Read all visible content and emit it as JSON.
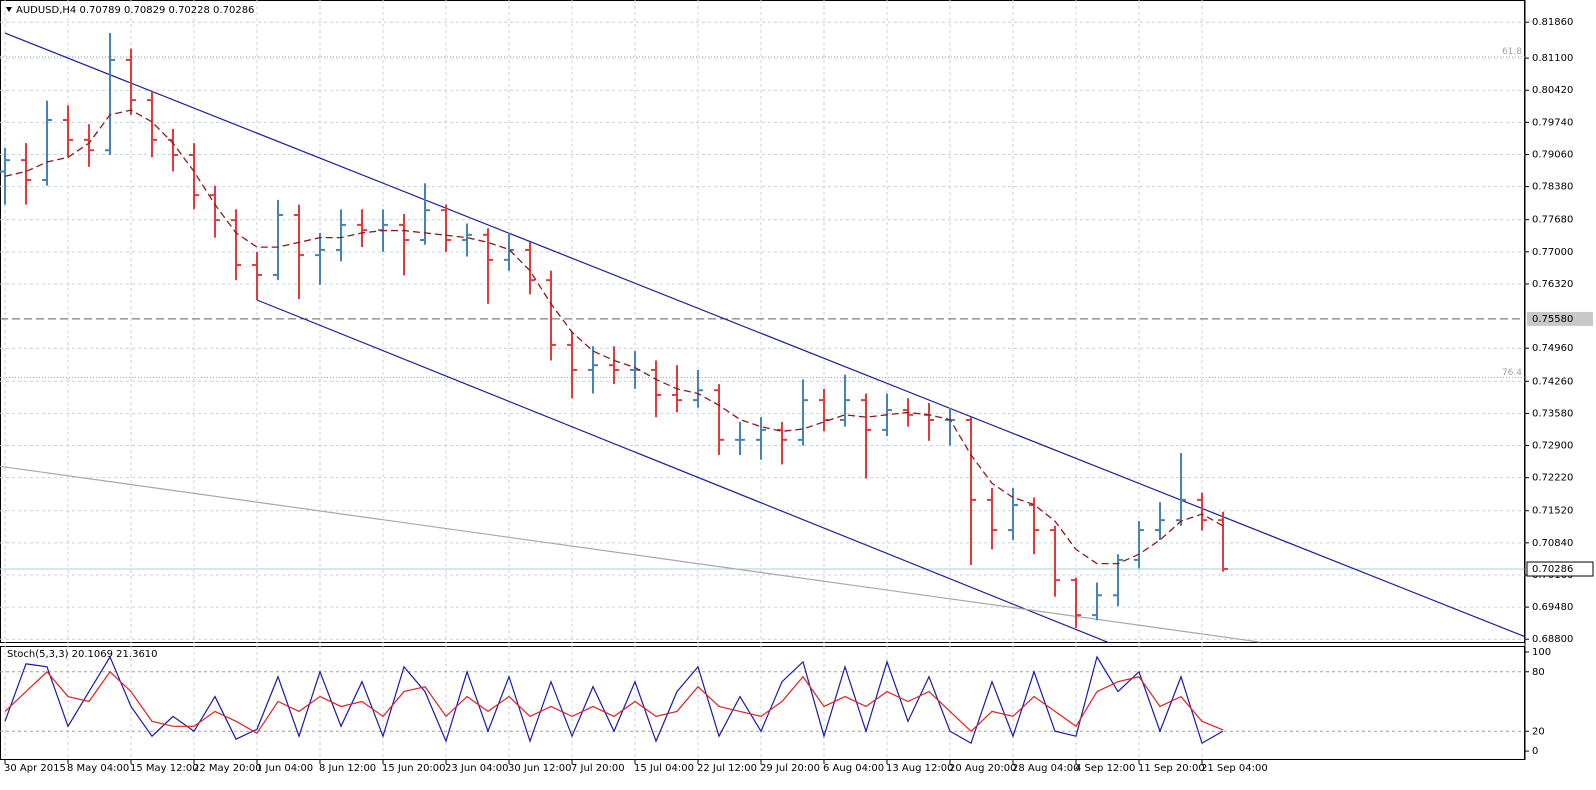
{
  "chart_data": [
    {
      "type": "ohlc",
      "title": "AUDUSD,H4 0.70789 0.70829 0.70228 0.70286",
      "categories": [
        "30 Apr 2015",
        null,
        null,
        "8 May 04:00",
        null,
        null,
        "15 May 12:00",
        null,
        null,
        "22 May 20:00",
        null,
        null,
        "1 Jun 04:00",
        null,
        null,
        "8 Jun 12:00",
        null,
        null,
        "15 Jun 20:00",
        null,
        null,
        "23 Jun 04:00",
        null,
        null,
        "30 Jun 12:00",
        null,
        null,
        "7 Jul 20:00",
        null,
        null,
        "15 Jul 04:00",
        null,
        null,
        "22 Jul 12:00",
        null,
        null,
        "29 Jul 20:00",
        null,
        null,
        "6 Aug 04:00",
        null,
        null,
        "13 Aug 12:00",
        null,
        null,
        "20 Aug 20:00",
        null,
        null,
        "28 Aug 04:00",
        null,
        null,
        "4 Sep 12:00",
        null,
        null,
        "11 Sep 20:00",
        null,
        null,
        "21 Sep 04:00",
        null
      ],
      "ohlc": [
        [
          0.787,
          0.792,
          0.78,
          0.7894
        ],
        [
          0.7894,
          0.793,
          0.78,
          0.7852
        ],
        [
          0.7852,
          0.802,
          0.784,
          0.7979
        ],
        [
          0.7979,
          0.801,
          0.79,
          0.7937
        ],
        [
          0.7937,
          0.797,
          0.788,
          0.7915
        ],
        [
          0.7915,
          0.8163,
          0.7905,
          0.8106
        ],
        [
          0.8106,
          0.813,
          0.799,
          0.8021
        ],
        [
          0.8021,
          0.804,
          0.79,
          0.7937
        ],
        [
          0.7937,
          0.796,
          0.787,
          0.7905
        ],
        [
          0.7905,
          0.793,
          0.779,
          0.782
        ],
        [
          0.782,
          0.784,
          0.773,
          0.7767
        ],
        [
          0.7767,
          0.779,
          0.764,
          0.7672
        ],
        [
          0.7672,
          0.77,
          0.7598,
          0.7651
        ],
        [
          0.7651,
          0.781,
          0.764,
          0.7778
        ],
        [
          0.7778,
          0.78,
          0.76,
          0.7693
        ],
        [
          0.7693,
          0.774,
          0.763,
          0.7704
        ],
        [
          0.7704,
          0.779,
          0.768,
          0.7757
        ],
        [
          0.7757,
          0.779,
          0.771,
          0.7746
        ],
        [
          0.7746,
          0.779,
          0.77,
          0.7757
        ],
        [
          0.7757,
          0.778,
          0.765,
          0.7725
        ],
        [
          0.7725,
          0.7845,
          0.7715,
          0.7788
        ],
        [
          0.7788,
          0.78,
          0.77,
          0.7725
        ],
        [
          0.7725,
          0.776,
          0.769,
          0.7736
        ],
        [
          0.7736,
          0.775,
          0.759,
          0.7683
        ],
        [
          0.7683,
          0.774,
          0.766,
          0.7704
        ],
        [
          0.7704,
          0.772,
          0.761,
          0.764
        ],
        [
          0.764,
          0.766,
          0.747,
          0.7503
        ],
        [
          0.7503,
          0.753,
          0.739,
          0.745
        ],
        [
          0.745,
          0.75,
          0.74,
          0.746
        ],
        [
          0.746,
          0.75,
          0.742,
          0.745
        ],
        [
          0.745,
          0.749,
          0.741,
          0.745
        ],
        [
          0.745,
          0.747,
          0.735,
          0.7397
        ],
        [
          0.7397,
          0.746,
          0.736,
          0.7386
        ],
        [
          0.7386,
          0.745,
          0.737,
          0.7407
        ],
        [
          0.7407,
          0.742,
          0.727,
          0.7302
        ],
        [
          0.7302,
          0.734,
          0.727,
          0.7302
        ],
        [
          0.7302,
          0.735,
          0.726,
          0.7323
        ],
        [
          0.7323,
          0.734,
          0.725,
          0.7302
        ],
        [
          0.7302,
          0.743,
          0.729,
          0.7386
        ],
        [
          0.7386,
          0.741,
          0.732,
          0.7344
        ],
        [
          0.7344,
          0.744,
          0.733,
          0.7386
        ],
        [
          0.7386,
          0.74,
          0.722,
          0.7323
        ],
        [
          0.7323,
          0.74,
          0.731,
          0.7365
        ],
        [
          0.7365,
          0.739,
          0.733,
          0.7355
        ],
        [
          0.7355,
          0.738,
          0.73,
          0.7344
        ],
        [
          0.7344,
          0.737,
          0.729,
          0.7344
        ],
        [
          0.7344,
          0.735,
          0.7037,
          0.7175
        ],
        [
          0.7175,
          0.72,
          0.707,
          0.7111
        ],
        [
          0.7111,
          0.72,
          0.709,
          0.7164
        ],
        [
          0.7164,
          0.718,
          0.706,
          0.7111
        ],
        [
          0.7111,
          0.712,
          0.697,
          0.7005
        ],
        [
          0.7005,
          0.701,
          0.6904,
          0.6931
        ],
        [
          0.6931,
          0.7,
          0.692,
          0.6973
        ],
        [
          0.6973,
          0.706,
          0.695,
          0.7048
        ],
        [
          0.7048,
          0.713,
          0.703,
          0.7111
        ],
        [
          0.7111,
          0.717,
          0.709,
          0.7132
        ],
        [
          0.7132,
          0.7274,
          0.712,
          0.7175
        ],
        [
          0.7175,
          0.719,
          0.711,
          0.7132
        ],
        [
          0.7132,
          0.715,
          0.7023,
          0.70286
        ]
      ],
      "up_color": "#4682b4",
      "down_color": "#e0393e",
      "moving_average": {
        "color": "#8b1a1a",
        "values": [
          0.786,
          0.787,
          0.789,
          0.79,
          0.793,
          0.799,
          0.8,
          0.7975,
          0.793,
          0.787,
          0.78,
          0.774,
          0.771,
          0.771,
          0.772,
          0.773,
          0.773,
          0.774,
          0.7745,
          0.7745,
          0.774,
          0.7735,
          0.773,
          0.772,
          0.7705,
          0.766,
          0.759,
          0.753,
          0.749,
          0.747,
          0.7455,
          0.743,
          0.741,
          0.74,
          0.7375,
          0.7345,
          0.733,
          0.732,
          0.7325,
          0.734,
          0.7355,
          0.735,
          0.7355,
          0.736,
          0.7355,
          0.7345,
          0.727,
          0.721,
          0.718,
          0.7165,
          0.713,
          0.707,
          0.704,
          0.704,
          0.706,
          0.709,
          0.713,
          0.7145,
          0.712
        ]
      },
      "trendlines": [
        {
          "color": "#1c1ca0",
          "x": [
            0,
            72.4
          ],
          "values": [
            0.8163,
            0.6885
          ]
        },
        {
          "color": "#1c1ca0",
          "x": [
            12,
            52.6
          ],
          "values": [
            0.7598,
            0.6872
          ]
        },
        {
          "color": "#a8a8a8",
          "x": [
            -0.24,
            59.76
          ],
          "values": [
            0.7246,
            0.6874
          ]
        }
      ],
      "levels": [
        {
          "value": 0.7558,
          "label": "0.75580"
        }
      ],
      "fib_levels": [
        {
          "value": 0.8113,
          "label": "61.8"
        },
        {
          "value": 0.7434,
          "label": "76.4"
        }
      ],
      "last_price": 0.70286,
      "ylim": [
        0.6872,
        0.8233
      ],
      "yticks": [
        {
          "value": 0.8186,
          "label": "0.81860"
        },
        {
          "value": 0.811,
          "label": "0.81100"
        },
        {
          "value": 0.8042,
          "label": "0.80420"
        },
        {
          "value": 0.7974,
          "label": "0.79740"
        },
        {
          "value": 0.7906,
          "label": "0.79060"
        },
        {
          "value": 0.7838,
          "label": "0.78380"
        },
        {
          "value": 0.7768,
          "label": "0.77680"
        },
        {
          "value": 0.77,
          "label": "0.77000"
        },
        {
          "value": 0.7632,
          "label": "0.76320"
        },
        {
          "value": 0.7496,
          "label": "0.74960"
        },
        {
          "value": 0.7426,
          "label": "0.74260"
        },
        {
          "value": 0.7358,
          "label": "0.73580"
        },
        {
          "value": 0.729,
          "label": "0.72900"
        },
        {
          "value": 0.7222,
          "label": "0.72220"
        },
        {
          "value": 0.7152,
          "label": "0.71520"
        },
        {
          "value": 0.7084,
          "label": "0.70840"
        },
        {
          "value": 0.7016,
          "label": "0.70160"
        },
        {
          "value": 0.6948,
          "label": "0.69480"
        },
        {
          "value": 0.688,
          "label": "0.68800"
        }
      ],
      "grid": true
    },
    {
      "type": "line",
      "title": "Stoch(5,3,3) 20.1069 21.3610",
      "series": [
        {
          "color": "#1a1aa8",
          "values": [
            30,
            88,
            85,
            25,
            60,
            95,
            45,
            15,
            35,
            20,
            55,
            12,
            22,
            75,
            15,
            80,
            25,
            70,
            15,
            85,
            60,
            10,
            80,
            20,
            75,
            10,
            70,
            15,
            65,
            20,
            70,
            10,
            60,
            85,
            15,
            55,
            20,
            70,
            90,
            15,
            85,
            20,
            90,
            30,
            75,
            20,
            8,
            70,
            15,
            80,
            20,
            15,
            95,
            60,
            80,
            20,
            75,
            8,
            20.1069
          ]
        },
        {
          "color": "#e02020",
          "values": [
            40,
            60,
            80,
            55,
            50,
            80,
            60,
            30,
            25,
            25,
            40,
            30,
            18,
            50,
            40,
            55,
            45,
            50,
            35,
            60,
            65,
            35,
            55,
            40,
            55,
            35,
            45,
            35,
            45,
            35,
            50,
            35,
            40,
            65,
            45,
            40,
            35,
            50,
            75,
            45,
            55,
            45,
            60,
            50,
            60,
            40,
            20,
            40,
            35,
            55,
            40,
            25,
            60,
            70,
            75,
            45,
            55,
            30,
            21.361
          ]
        }
      ],
      "ylim": [
        -9,
        106
      ],
      "yticks": [
        0,
        20,
        80,
        100
      ],
      "levels": [
        20,
        80
      ],
      "grid": true
    }
  ]
}
